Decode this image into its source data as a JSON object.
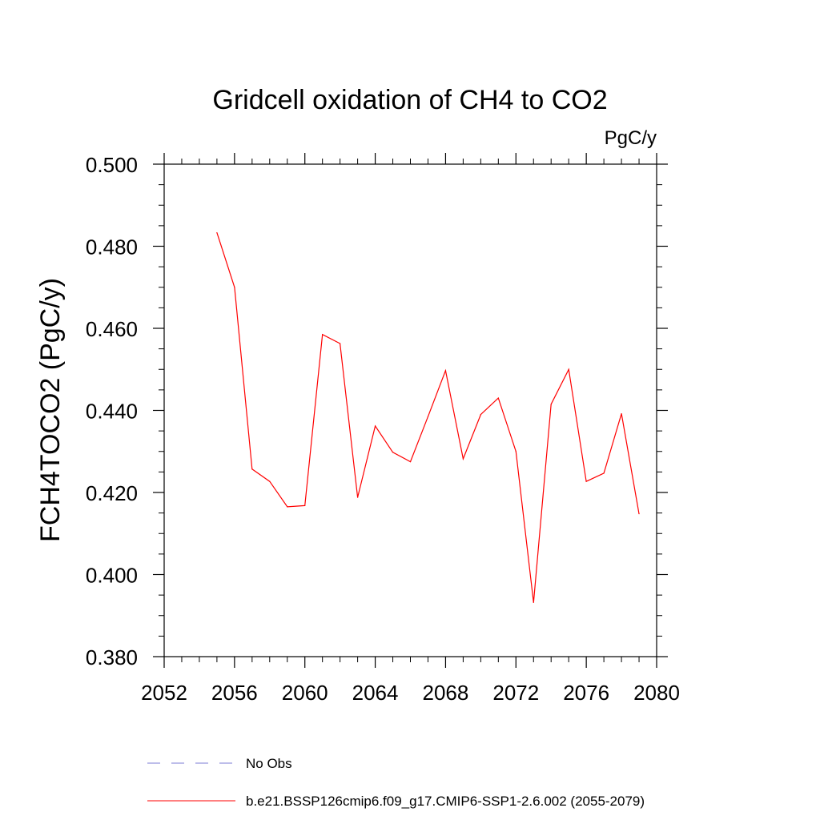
{
  "chart_data": {
    "type": "line",
    "title": "Gridcell oxidation of CH4 to CO2",
    "units": "PgC/y",
    "ylabel": "FCH4TOCO2  (PgC/y)",
    "xlabel": "",
    "xlim": [
      2052,
      2080
    ],
    "ylim": [
      0.38,
      0.5
    ],
    "x_ticks": [
      2052,
      2056,
      2060,
      2064,
      2068,
      2072,
      2076,
      2080
    ],
    "x_tick_labels": [
      "2052",
      "2056",
      "2060",
      "2064",
      "2068",
      "2072",
      "2076",
      "2080"
    ],
    "x_minor_step": 1,
    "y_ticks": [
      0.38,
      0.4,
      0.42,
      0.44,
      0.46,
      0.48,
      0.5
    ],
    "y_tick_labels": [
      "0.380",
      "0.400",
      "0.420",
      "0.440",
      "0.460",
      "0.480",
      "0.500"
    ],
    "y_minor_step": 0.005,
    "grid": false,
    "legend_position": "bottom",
    "legend": [
      {
        "label": "No Obs",
        "color": "#7b7bd6",
        "dash": true
      },
      {
        "label": "b.e21.BSSP126cmip6.f09_g17.CMIP6-SSP1-2.6.002 (2055-2079)",
        "color": "#ff0000",
        "dash": false
      }
    ],
    "series": [
      {
        "name": "b.e21.BSSP126cmip6.f09_g17.CMIP6-SSP1-2.6.002 (2055-2079)",
        "color": "#ff0000",
        "x": [
          2055,
          2056,
          2057,
          2058,
          2059,
          2060,
          2061,
          2062,
          2063,
          2064,
          2065,
          2066,
          2067,
          2068,
          2069,
          2070,
          2071,
          2072,
          2073,
          2074,
          2075,
          2076,
          2077,
          2078,
          2079
        ],
        "y": [
          0.4833,
          0.47,
          0.4257,
          0.4227,
          0.4165,
          0.4168,
          0.4585,
          0.4563,
          0.4188,
          0.4362,
          0.4298,
          0.4275,
          0.4385,
          0.4497,
          0.4282,
          0.439,
          0.443,
          0.43,
          0.3932,
          0.4415,
          0.45,
          0.4227,
          0.4247,
          0.4392,
          0.4148
        ]
      }
    ]
  }
}
